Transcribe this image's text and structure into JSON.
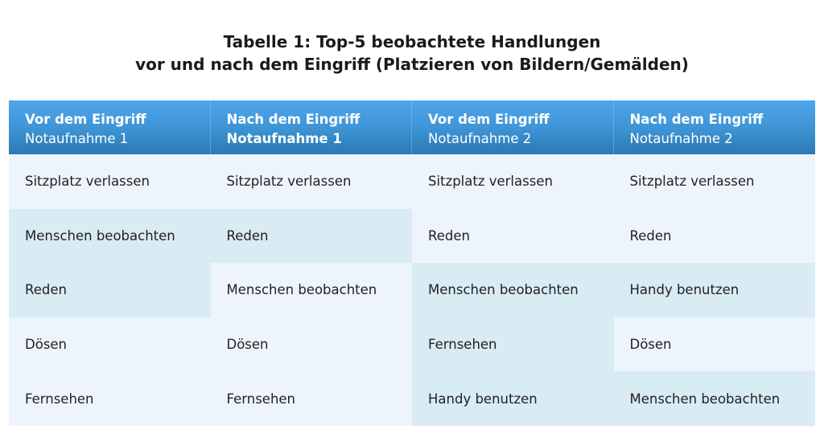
{
  "title": {
    "line1": "Tabelle 1: Top-5 beobachtete Handlungen",
    "line2": "vor und nach dem Eingriff (Platzieren von Bildern/Gemälden)"
  },
  "columns": [
    {
      "line1": "Vor dem Eingriff",
      "line2": "Notaufnahme 1"
    },
    {
      "line1": "Nach dem Eingriff",
      "line2": "Notaufnahme 1"
    },
    {
      "line1": "Vor dem Eingriff",
      "line2": "Notaufnahme 2"
    },
    {
      "line1": "Nach dem Eingriff",
      "line2": "Notaufnahme 2"
    }
  ],
  "rows": [
    [
      "Sitzplatz verlassen",
      "Sitzplatz verlassen",
      "Sitzplatz verlassen",
      "Sitzplatz verlassen"
    ],
    [
      "Menschen beobachten",
      "Reden",
      "Reden",
      "Reden"
    ],
    [
      "Reden",
      "Menschen beobachten",
      "Menschen beobachten",
      "Handy benutzen"
    ],
    [
      "Dösen",
      "Dösen",
      "Fernsehen",
      "Dösen"
    ],
    [
      "Fernsehen",
      "Fernsehen",
      "Handy benutzen",
      "Menschen beobachten"
    ]
  ],
  "colors": {
    "header_top": "#4ea6ec",
    "header_bottom": "#2a79b2",
    "cell_light": "#edf4fb",
    "cell_highlight": "#d9ebf3"
  }
}
